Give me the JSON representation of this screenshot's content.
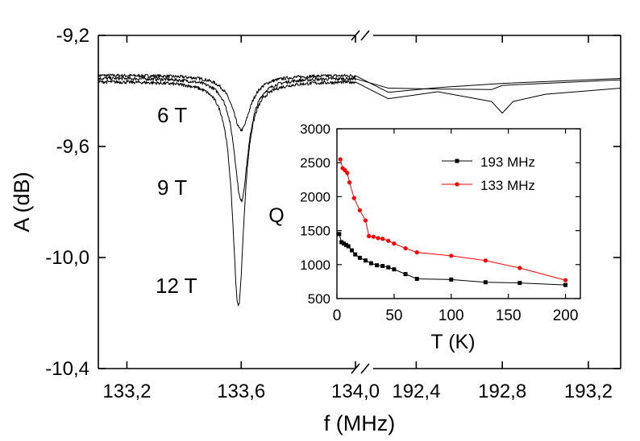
{
  "chart_data": [
    {
      "type": "line",
      "xlabel": "f (MHz)",
      "ylabel": "A (dB)",
      "ylim": [
        -10.4,
        -9.2
      ],
      "yticks": [
        "-9,2",
        "-9,6",
        "-10,0",
        "-10,4"
      ],
      "broken_x_axis": true,
      "x_segments": [
        {
          "xlim": [
            133.1,
            134.0
          ],
          "ticks": [
            {
              "value": 133.2,
              "label": "133,2"
            },
            {
              "value": 133.6,
              "label": "133,6"
            },
            {
              "value": 134.0,
              "label": "134,0"
            }
          ]
        },
        {
          "xlim": [
            192.2,
            193.35
          ],
          "ticks": [
            {
              "value": 192.4,
              "label": "192,4"
            },
            {
              "value": 192.8,
              "label": "192,8"
            },
            {
              "value": 193.2,
              "label": "193,2"
            }
          ]
        }
      ],
      "series": [
        {
          "name": "6 T",
          "baseline": -9.343,
          "dip_center": 133.6,
          "dip_min": -9.541,
          "dip_width": 0.038,
          "gap_points": [
            [
              134.0,
              -9.345
            ],
            [
              192.27,
              -9.405
            ],
            [
              192.5,
              -9.388
            ],
            [
              192.8,
              -9.373
            ],
            [
              193.35,
              -9.355
            ]
          ]
        },
        {
          "name": "9 T",
          "baseline": -9.353,
          "dip_center": 133.6,
          "dip_min": -9.796,
          "dip_width": 0.03,
          "gap_points": [
            [
              134.0,
              -9.356
            ],
            [
              192.27,
              -9.39
            ],
            [
              192.5,
              -9.393
            ],
            [
              192.75,
              -9.395
            ],
            [
              192.8,
              -9.38
            ],
            [
              193.35,
              -9.36
            ]
          ]
        },
        {
          "name": "12 T",
          "baseline": -9.365,
          "dip_center": 133.59,
          "dip_min": -10.175,
          "dip_width": 0.025,
          "gap_points": [
            [
              134.0,
              -9.368
            ],
            [
              192.27,
              -9.428
            ],
            [
              192.5,
              -9.403
            ],
            [
              192.75,
              -9.438
            ],
            [
              192.8,
              -9.48
            ],
            [
              192.85,
              -9.438
            ],
            [
              193.0,
              -9.412
            ],
            [
              193.35,
              -9.39
            ]
          ]
        }
      ],
      "series_labels": [
        "6 T",
        "9 T",
        "12 T"
      ]
    },
    {
      "type": "line",
      "inset": true,
      "xlabel": "T (K)",
      "ylabel": "Q",
      "xlim": [
        0,
        213
      ],
      "ylim": [
        500,
        3000
      ],
      "xticks": [
        0,
        50,
        100,
        150,
        200
      ],
      "yticks": [
        500,
        1000,
        1500,
        2000,
        2500,
        3000
      ],
      "legend": "top-right",
      "series": [
        {
          "name": "193 MHz",
          "color": "#000000",
          "marker": "square",
          "x": [
            2,
            4,
            6,
            8,
            10,
            13,
            16,
            20,
            25,
            30,
            35,
            40,
            45,
            50,
            60,
            70,
            100,
            130,
            160,
            200
          ],
          "y": [
            1450,
            1330,
            1310,
            1290,
            1270,
            1210,
            1150,
            1100,
            1060,
            1020,
            990,
            980,
            960,
            930,
            860,
            790,
            780,
            740,
            730,
            700
          ]
        },
        {
          "name": "133 MHz",
          "color": "#ff0000",
          "marker": "circle",
          "x": [
            3,
            5,
            7,
            9,
            11,
            15,
            20,
            25,
            28,
            32,
            36,
            40,
            45,
            50,
            60,
            70,
            100,
            130,
            160,
            200
          ],
          "y": [
            2550,
            2420,
            2390,
            2350,
            2210,
            1980,
            1800,
            1650,
            1420,
            1410,
            1390,
            1380,
            1350,
            1310,
            1240,
            1180,
            1130,
            1060,
            950,
            770
          ]
        }
      ]
    }
  ]
}
